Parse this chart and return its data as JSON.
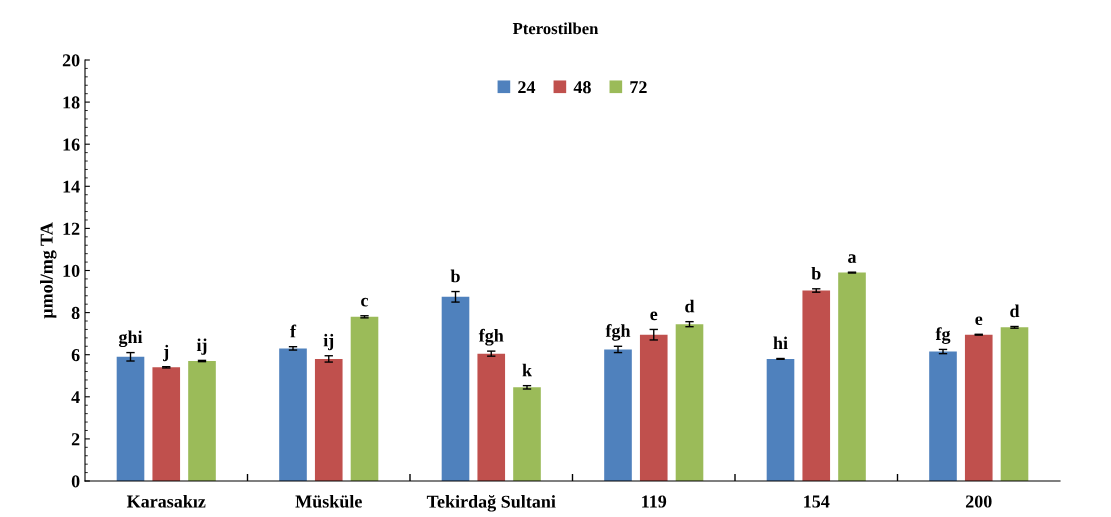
{
  "chart_data": {
    "type": "bar",
    "title": "Pterostilben",
    "ylabel": "µmol/mg TA",
    "categories": [
      "Karasakız",
      "Müsküle",
      "Tekirdağ Sultani",
      "119",
      "154",
      "200"
    ],
    "series": [
      {
        "name": "24",
        "color": "#4f81bd",
        "values": [
          5.9,
          6.3,
          8.75,
          6.25,
          5.8,
          6.15
        ],
        "errors": [
          0.2,
          0.08,
          0.25,
          0.15,
          0.02,
          0.1
        ],
        "value_labels": [
          "ghi",
          "f",
          "b",
          "fgh",
          "hi",
          "fg"
        ]
      },
      {
        "name": "48",
        "color": "#c0504d",
        "values": [
          5.4,
          5.8,
          6.05,
          6.95,
          9.05,
          6.95
        ],
        "errors": [
          0.03,
          0.15,
          0.12,
          0.25,
          0.08,
          0.02
        ],
        "value_labels": [
          "j",
          "ij",
          "fgh",
          "e",
          "b",
          "e"
        ]
      },
      {
        "name": "72",
        "color": "#9bbb59",
        "values": [
          5.7,
          7.8,
          4.45,
          7.45,
          9.9,
          7.3
        ],
        "errors": [
          0.03,
          0.05,
          0.08,
          0.12,
          0.02,
          0.04
        ],
        "value_labels": [
          "ij",
          "c",
          "k",
          "d",
          "a",
          "d"
        ]
      }
    ],
    "ylim": [
      0,
      20
    ],
    "yticks": [
      0,
      2,
      4,
      6,
      8,
      10,
      12,
      14,
      16,
      18,
      20
    ],
    "legend": "top",
    "grid": false
  }
}
